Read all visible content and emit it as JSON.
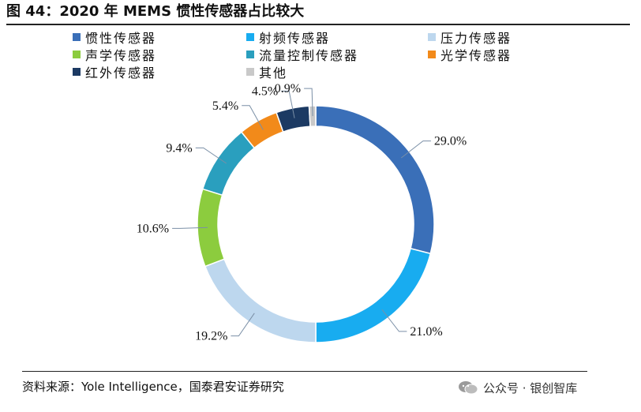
{
  "title": "图 44：2020 年 MEMS 惯性传感器占比较大",
  "footer": {
    "source": "资料来源：Yole Intelligence，国泰君安证券研究",
    "brand": "公众号 · 银创智库",
    "brand_icon": "wechat-icon"
  },
  "colors": {
    "inertial": "#3A6FB8",
    "rf": "#18ACF0",
    "pressure": "#BDD7EE",
    "acoustic": "#8CCC3E",
    "flow": "#2A9FBE",
    "optical": "#F28A1A",
    "infrared": "#1C3A63",
    "other": "#C9C9C9"
  },
  "chart_data": {
    "type": "pie",
    "donut": true,
    "title": "",
    "legend_position": "top",
    "slices": [
      {
        "name": "惯性传感器",
        "value": 29.0,
        "label": "29.0%",
        "color": "#3A6FB8"
      },
      {
        "name": "射频传感器",
        "value": 21.0,
        "label": "21.0%",
        "color": "#18ACF0"
      },
      {
        "name": "压力传感器",
        "value": 19.2,
        "label": "19.2%",
        "color": "#BDD7EE"
      },
      {
        "name": "声学传感器",
        "value": 10.6,
        "label": "10.6%",
        "color": "#8CCC3E"
      },
      {
        "name": "流量控制传感器",
        "value": 9.4,
        "label": "9.4%",
        "color": "#2A9FBE"
      },
      {
        "name": "光学传感器",
        "value": 5.4,
        "label": "5.4%",
        "color": "#F28A1A"
      },
      {
        "name": "红外传感器",
        "value": 4.5,
        "label": "4.5%",
        "color": "#1C3A63"
      },
      {
        "name": "其他",
        "value": 0.9,
        "label": "0.9%",
        "color": "#C9C9C9"
      }
    ]
  }
}
